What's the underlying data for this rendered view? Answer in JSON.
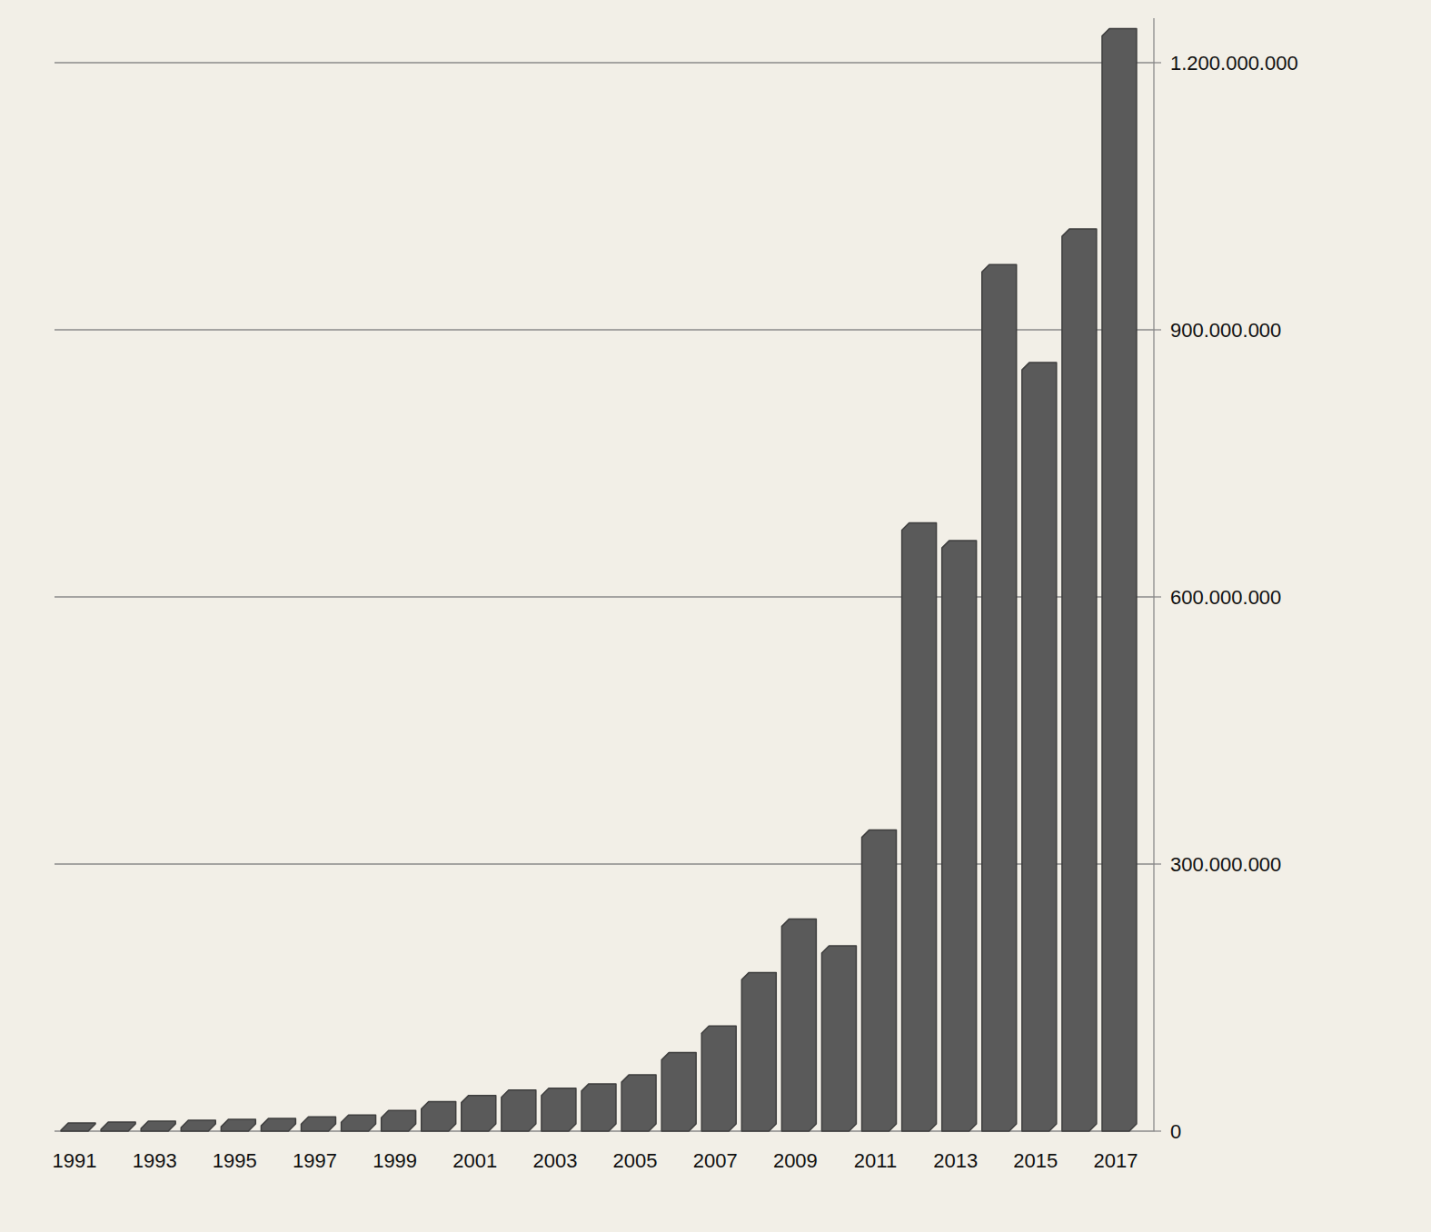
{
  "chart_data": {
    "type": "bar",
    "categories": [
      "1991",
      null,
      "1993",
      null,
      "1995",
      null,
      "1997",
      null,
      "1999",
      null,
      "2001",
      null,
      "2003",
      null,
      "2005",
      null,
      "2007",
      null,
      "2009",
      null,
      "2011",
      null,
      "2013",
      null,
      "2015",
      null,
      "2017"
    ],
    "values": [
      1000000,
      2000000,
      3000000,
      4000000,
      5000000,
      6000000,
      8000000,
      10000000,
      15000000,
      25000000,
      32000000,
      38000000,
      40000000,
      45000000,
      55000000,
      80000000,
      110000000,
      170000000,
      230000000,
      200000000,
      330000000,
      675000000,
      655000000,
      965000000,
      855000000,
      1005000000,
      1230000000
    ],
    "color": "#5a5a5a",
    "ylim": [
      0,
      1250000000
    ],
    "yticks": [
      0,
      {
        "value": 300000000,
        "label": "300.000.000"
      },
      {
        "value": 600000000,
        "label": "600.000.000"
      },
      {
        "value": 900000000,
        "label": "900.000.000"
      },
      {
        "value": 1200000000,
        "label": "1.200.000.000"
      }
    ],
    "grid": true
  }
}
